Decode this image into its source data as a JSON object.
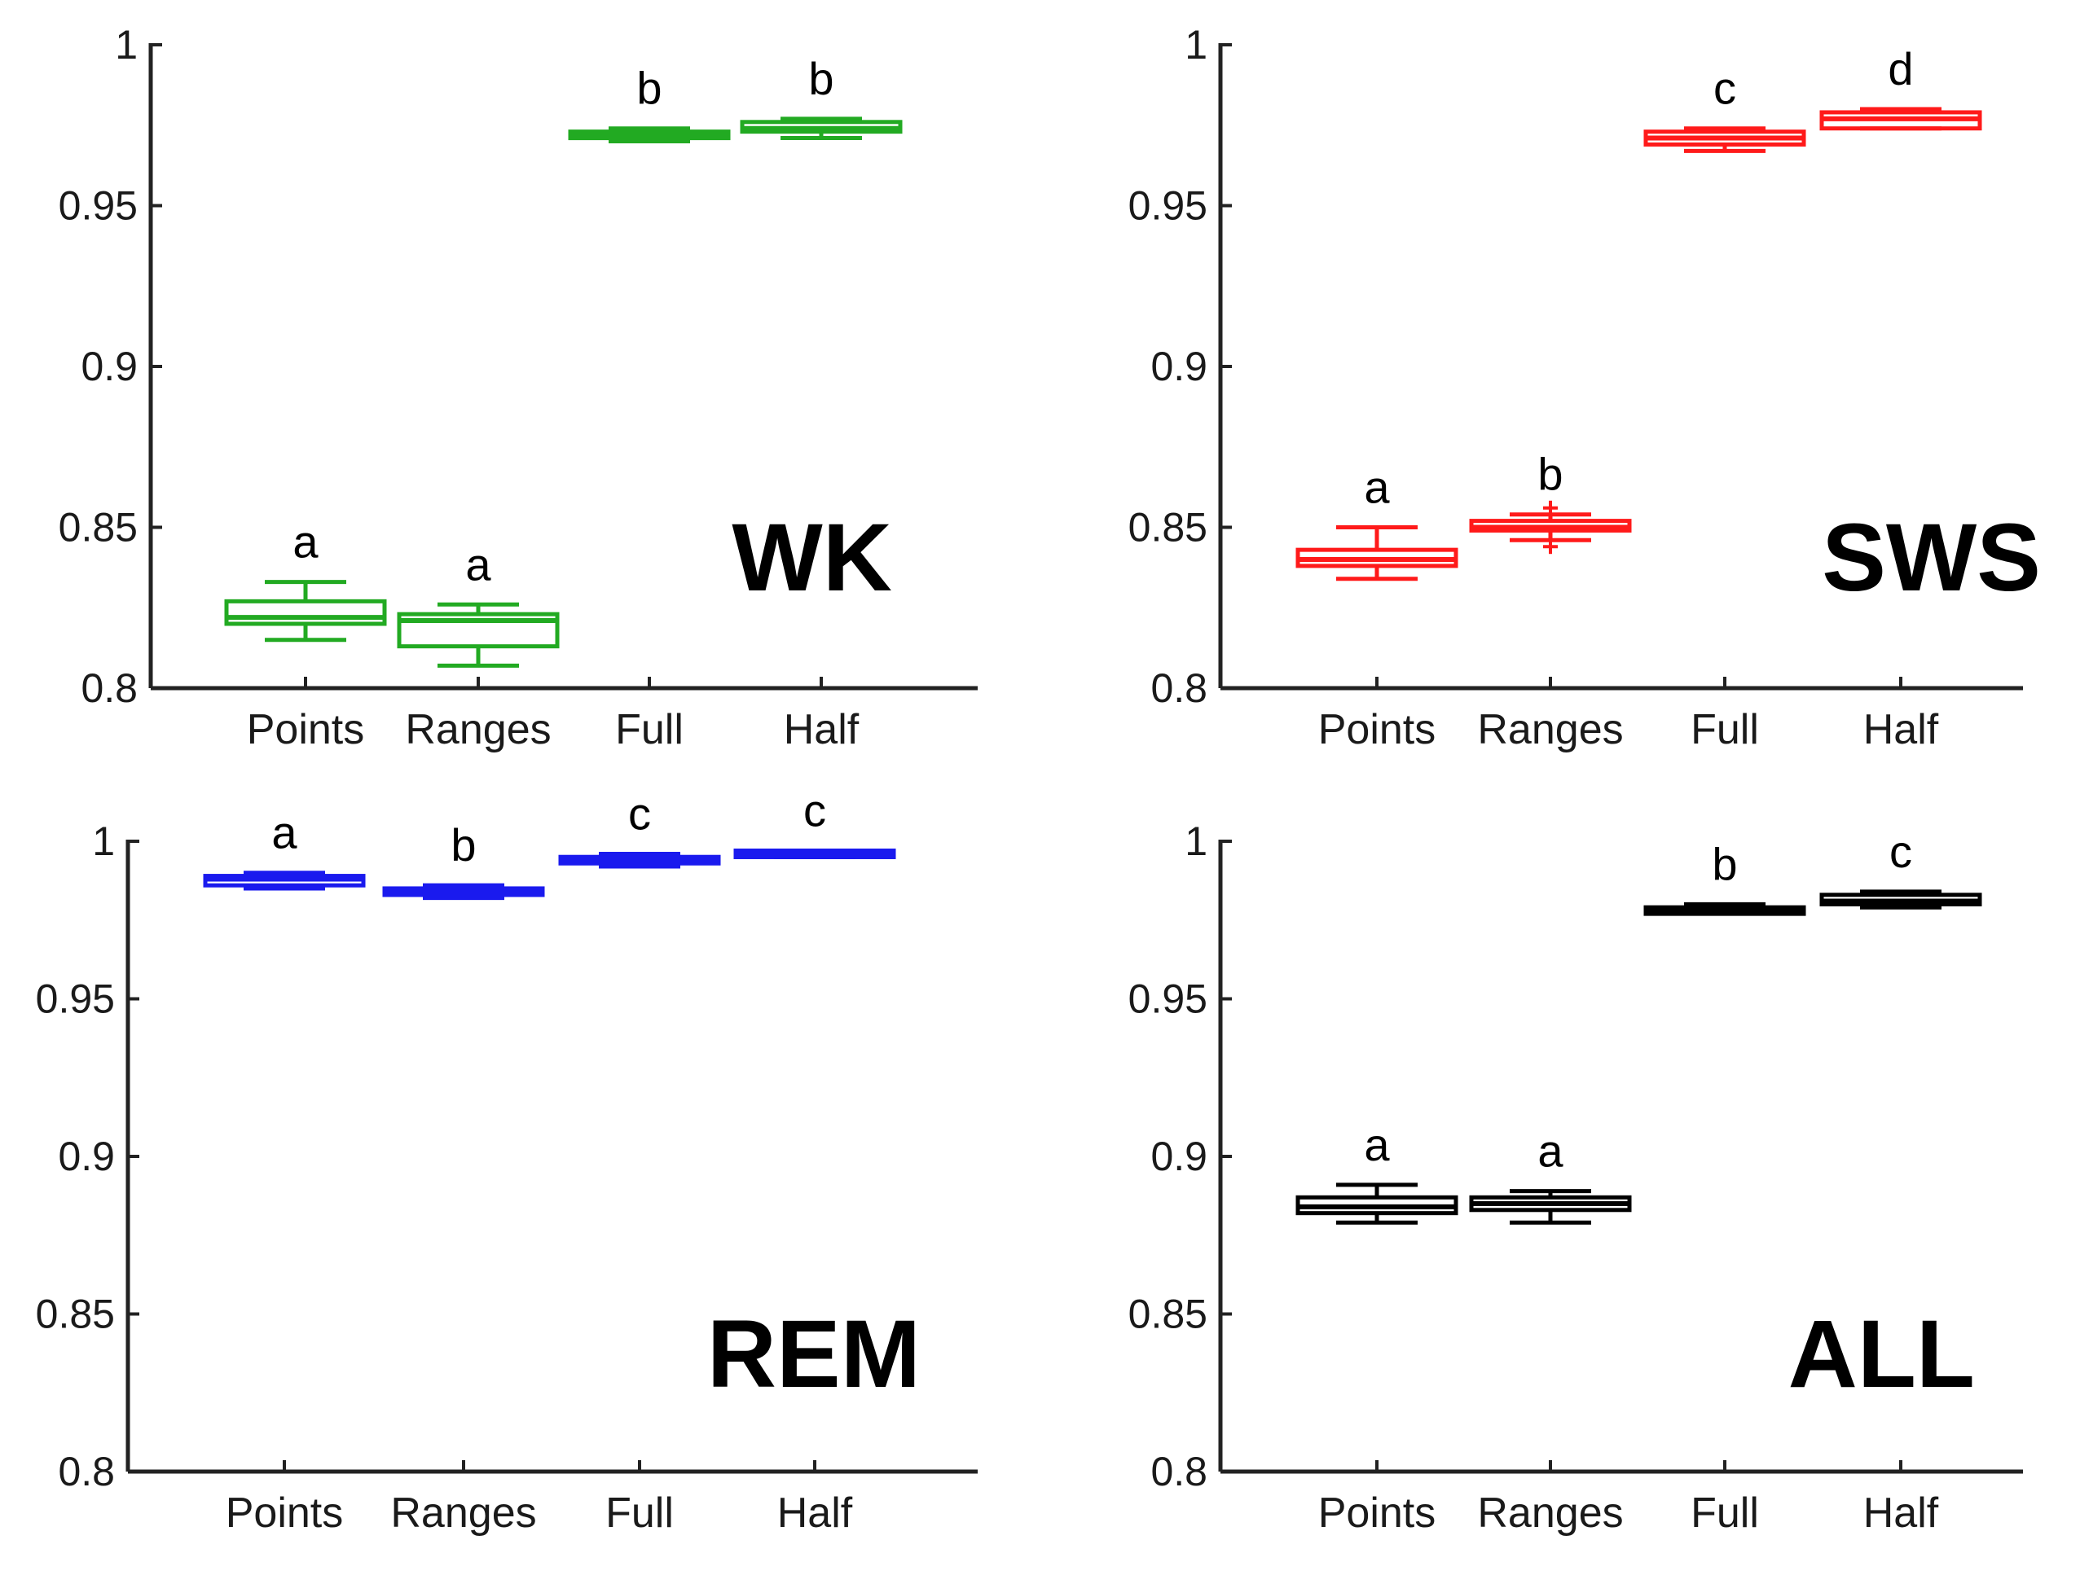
{
  "figure": {
    "description_free": true
  },
  "chart_data": [
    {
      "type": "box",
      "panel_label": "WK",
      "color": "#22aa22",
      "categories": [
        "Points",
        "Ranges",
        "Full",
        "Half"
      ],
      "ylim": [
        0.8,
        1
      ],
      "yticks": [
        "0.8",
        "0.85",
        "0.9",
        "0.95",
        "1"
      ],
      "boxes": [
        {
          "whisker_low": 0.815,
          "q1": 0.82,
          "median": 0.822,
          "q3": 0.827,
          "whisker_high": 0.833,
          "letter": "a"
        },
        {
          "whisker_low": 0.807,
          "q1": 0.813,
          "median": 0.821,
          "q3": 0.823,
          "whisker_high": 0.826,
          "letter": "a"
        },
        {
          "whisker_low": 0.97,
          "q1": 0.971,
          "median": 0.972,
          "q3": 0.973,
          "whisker_high": 0.974,
          "letter": "b"
        },
        {
          "whisker_low": 0.971,
          "q1": 0.973,
          "median": 0.974,
          "q3": 0.976,
          "whisker_high": 0.977,
          "letter": "b"
        }
      ]
    },
    {
      "type": "box",
      "panel_label": "SWS",
      "color": "#ff1a1a",
      "categories": [
        "Points",
        "Ranges",
        "Full",
        "Half"
      ],
      "ylim": [
        0.8,
        1
      ],
      "yticks": [
        "0.8",
        "0.85",
        "0.9",
        "0.95",
        "1"
      ],
      "boxes": [
        {
          "whisker_low": 0.834,
          "q1": 0.838,
          "median": 0.84,
          "q3": 0.843,
          "whisker_high": 0.85,
          "letter": "a"
        },
        {
          "whisker_low": 0.846,
          "q1": 0.849,
          "median": 0.85,
          "q3": 0.852,
          "whisker_high": 0.854,
          "letter": "b",
          "outliers": [
            0.844,
            0.856
          ]
        },
        {
          "whisker_low": 0.967,
          "q1": 0.969,
          "median": 0.971,
          "q3": 0.973,
          "whisker_high": 0.974,
          "letter": "c"
        },
        {
          "whisker_low": 0.974,
          "q1": 0.974,
          "median": 0.977,
          "q3": 0.979,
          "whisker_high": 0.98,
          "letter": "d"
        }
      ]
    },
    {
      "type": "box",
      "panel_label": "REM",
      "color": "#1a1aee",
      "categories": [
        "Points",
        "Ranges",
        "Full",
        "Half"
      ],
      "ylim": [
        0.8,
        1
      ],
      "yticks": [
        "0.8",
        "0.85",
        "0.9",
        "0.95",
        "1"
      ],
      "boxes": [
        {
          "whisker_low": 0.985,
          "q1": 0.986,
          "median": 0.988,
          "q3": 0.989,
          "whisker_high": 0.99,
          "letter": "a"
        },
        {
          "whisker_low": 0.982,
          "q1": 0.983,
          "median": 0.984,
          "q3": 0.985,
          "whisker_high": 0.986,
          "letter": "b"
        },
        {
          "whisker_low": 0.992,
          "q1": 0.993,
          "median": 0.994,
          "q3": 0.995,
          "whisker_high": 0.996,
          "letter": "c"
        },
        {
          "whisker_low": 0.995,
          "q1": 0.9955,
          "median": 0.996,
          "q3": 0.9965,
          "whisker_high": 0.997,
          "letter": "c"
        }
      ]
    },
    {
      "type": "box",
      "panel_label": "ALL",
      "color": "#000000",
      "categories": [
        "Points",
        "Ranges",
        "Full",
        "Half"
      ],
      "ylim": [
        0.8,
        1
      ],
      "yticks": [
        "0.8",
        "0.85",
        "0.9",
        "0.95",
        "1"
      ],
      "boxes": [
        {
          "whisker_low": 0.879,
          "q1": 0.882,
          "median": 0.884,
          "q3": 0.887,
          "whisker_high": 0.891,
          "letter": "a"
        },
        {
          "whisker_low": 0.879,
          "q1": 0.883,
          "median": 0.885,
          "q3": 0.887,
          "whisker_high": 0.889,
          "letter": "a"
        },
        {
          "whisker_low": 0.977,
          "q1": 0.977,
          "median": 0.978,
          "q3": 0.979,
          "whisker_high": 0.98,
          "letter": "b"
        },
        {
          "whisker_low": 0.979,
          "q1": 0.98,
          "median": 0.981,
          "q3": 0.983,
          "whisker_high": 0.984,
          "letter": "c"
        }
      ]
    }
  ]
}
